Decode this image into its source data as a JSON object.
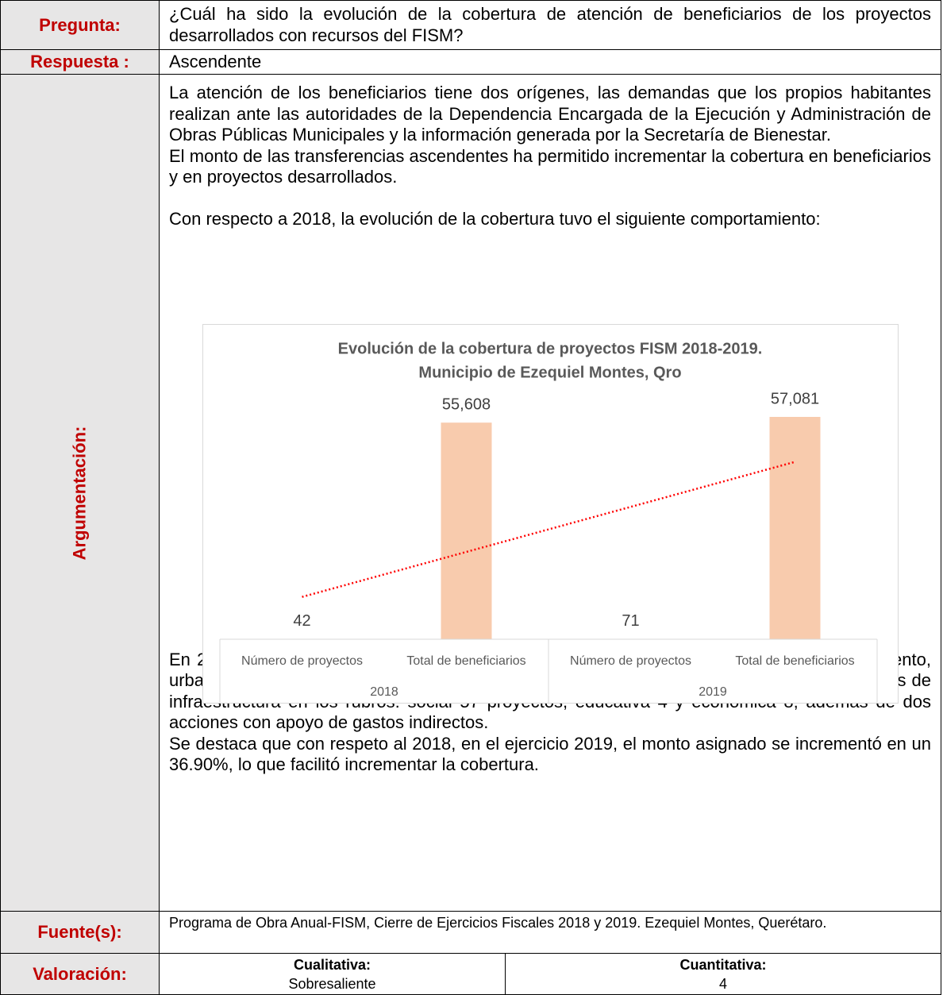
{
  "pregunta": {
    "label": "Pregunta:",
    "text": "¿Cuál ha sido la evolución de la cobertura de atención de beneficiarios de los proyectos desarrollados con recursos del FISM?"
  },
  "respuesta": {
    "label": "Respuesta :",
    "text": "Ascendente"
  },
  "argumentacion": {
    "label": "Argumentación:",
    "before": [
      "La atención de los beneficiarios tiene dos orígenes, las demandas que los propios habitantes realizan ante las autoridades de la Dependencia Encargada de la Ejecución y Administración de Obras Públicas Municipales y la información generada por la Secretaría de Bienestar.",
      "El monto de las transferencias ascendentes ha permitido incrementar la cobertura en beneficiarios y en proyectos desarrollados.",
      "Con respecto a 2018, la evolución de la cobertura tuvo el siguiente comportamiento:"
    ],
    "after": [
      "En 2018, se apoyaron 42 proyectos distribuidos en cuatro grandes rubros: agua y saneamiento, urbanización, vivienda y otros proyectos, mientras que en 2019, se desarrollaron 69 proyectos de infraestructura en los rubros: social 57 proyectos, educativa 4 y económica 8; además de dos acciones con apoyo de gastos indirectos.",
      "Se destaca que con respeto al 2018, en el ejercicio 2019, el monto asignado se incrementó en un 36.90%, lo que facilitó incrementar la cobertura."
    ]
  },
  "chart_data": {
    "type": "bar",
    "title": [
      "Evolución de la cobertura de proyectos FISM 2018-2019.",
      "Municipio de Ezequiel Montes, Qro"
    ],
    "categories": [
      "Número de proyectos",
      "Total de beneficiarios",
      "Número de proyectos",
      "Total de beneficiarios"
    ],
    "category_groups": [
      "2018",
      "2019"
    ],
    "values": [
      42,
      55608,
      71,
      57081
    ],
    "value_labels": [
      "42",
      "55,608",
      "71",
      "57,081"
    ],
    "color": "#f8cbad",
    "trendline": {
      "type": "linear",
      "color": "#ff0000",
      "style": "dotted"
    }
  },
  "fuente": {
    "label": "Fuente(s):",
    "text": "Programa de Obra Anual-FISM, Cierre de Ejercicios Fiscales 2018 y 2019. Ezequiel Montes, Querétaro."
  },
  "valoracion": {
    "label": "Valoración:",
    "cualitativa": {
      "label": "Cualitativa:",
      "value": "Sobresaliente"
    },
    "cuantitativa": {
      "label": "Cuantitativa:",
      "value": 4
    }
  }
}
